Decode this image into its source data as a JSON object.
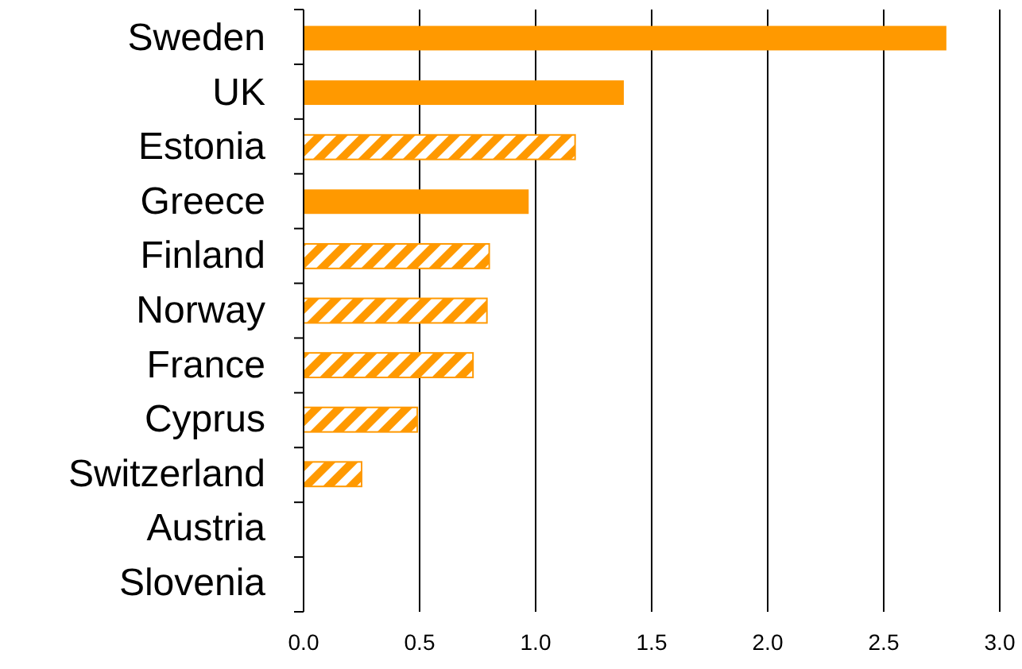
{
  "chart_data": {
    "type": "bar",
    "orientation": "horizontal",
    "stacked": true,
    "categories": [
      "Sweden",
      "UK",
      "Estonia",
      "Greece",
      "Finland",
      "Norway",
      "France",
      "Cyprus",
      "Switzerland",
      "Austria",
      "Slovenia"
    ],
    "series": [
      {
        "color": "#ff9900",
        "values": [
          2.77,
          1.38,
          null,
          0.97,
          null,
          null,
          null,
          null,
          null,
          0,
          0
        ]
      },
      {
        "color": "#ff9900",
        "values": [
          null,
          null,
          1.17,
          null,
          0.8,
          0.79,
          0.73,
          0.49,
          0.25,
          null,
          null
        ]
      }
    ],
    "xlim": [
      0,
      3
    ],
    "xticks": [
      {
        "value": 0,
        "label": "0.0"
      },
      0.5,
      {
        "value": 1,
        "label": "1.0"
      },
      1.5,
      {
        "value": 2,
        "label": "2.0"
      },
      2.5,
      {
        "value": 3,
        "label": "3.0"
      }
    ],
    "grid": "x"
  }
}
